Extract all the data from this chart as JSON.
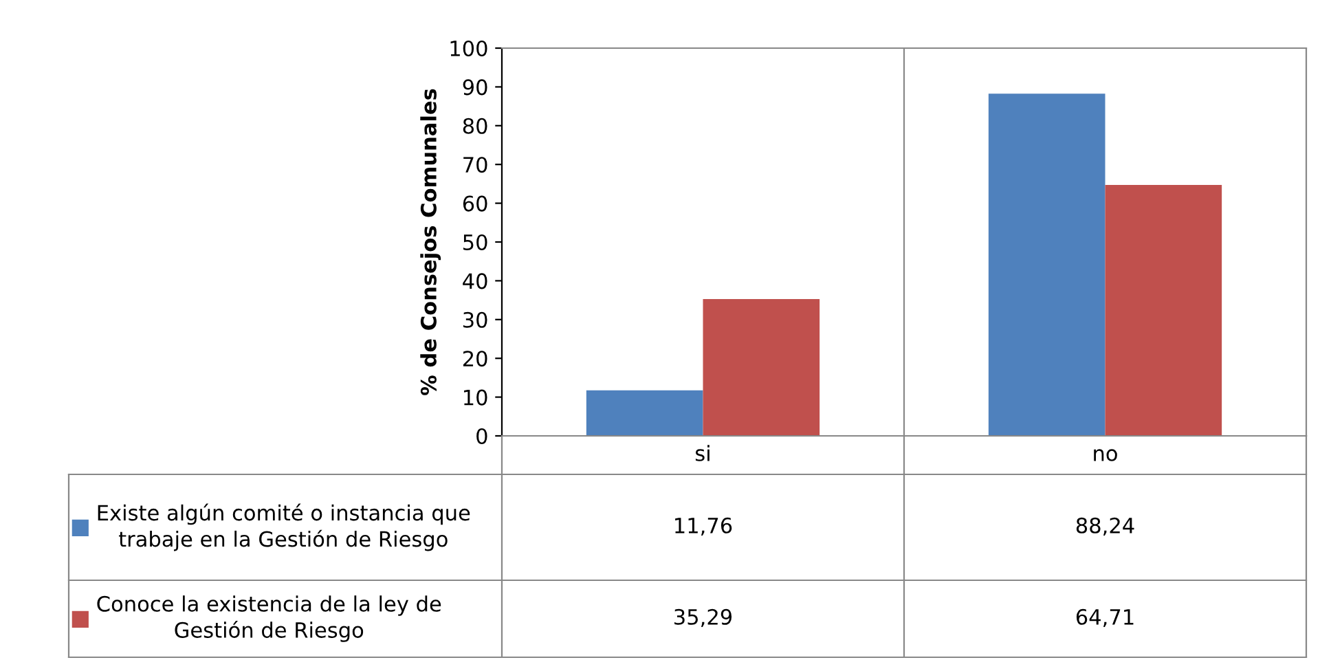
{
  "chart_data": {
    "type": "bar",
    "ylabel": "% de Consejos Comunales",
    "categories": [
      "si",
      "no"
    ],
    "series": [
      {
        "name": "Existe algún comité o instancia que trabaje en la Gestión de Riesgo",
        "color": "#4f81bd",
        "values": [
          11.76,
          88.24
        ],
        "value_labels": [
          "11,76",
          "88,24"
        ]
      },
      {
        "name": "Conoce la existencia de la ley de Gestión de Riesgo",
        "color": "#c0504d",
        "values": [
          35.29,
          64.71
        ],
        "value_labels": [
          "35,29",
          "64,71"
        ]
      }
    ],
    "ylim": [
      0,
      100
    ],
    "yticks": [
      0,
      10,
      20,
      30,
      40,
      50,
      60,
      70,
      80,
      90,
      100
    ],
    "grid": false,
    "legend": "bottom"
  }
}
